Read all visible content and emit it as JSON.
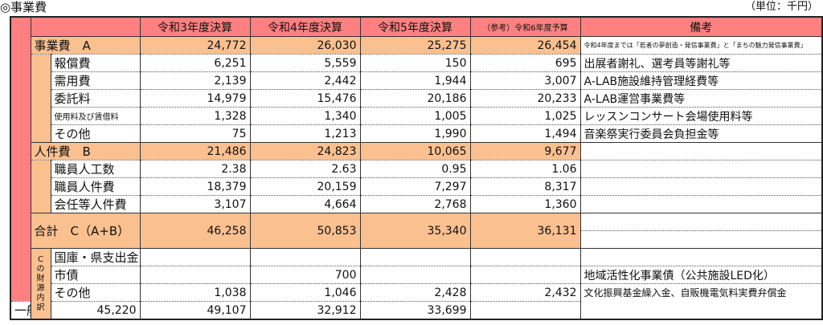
{
  "title": "◎事業費",
  "unit": "（単位：千円）",
  "colors": {
    "header": "#ff8080",
    "highlight": "#fac090"
  },
  "header": {
    "cols": [
      "令和3年度決算",
      "令和4年度決算",
      "令和5年度決算",
      "（参考）令和6年度予算"
    ],
    "remarks": "備考"
  },
  "rows": {
    "a": {
      "label": "事業費　A",
      "values": [
        "24,772",
        "26,030",
        "25,275",
        "26,454"
      ],
      "remark": "令和4年度までは「若者の夢創造・発信事業費」と「まちの魅力発信事業費」"
    },
    "a_items": [
      {
        "label": "報償費",
        "values": [
          "6,251",
          "5,559",
          "150",
          "695"
        ],
        "remark": "出展者謝礼、選考員等謝礼等"
      },
      {
        "label": "需用費",
        "values": [
          "2,139",
          "2,442",
          "1,944",
          "3,007"
        ],
        "remark": "A-LAB施設維持管理経費等"
      },
      {
        "label": "委託料",
        "values": [
          "14,979",
          "15,476",
          "20,186",
          "20,233"
        ],
        "remark": "A-LAB運営事業費等"
      },
      {
        "label": "使用料及び賃借料",
        "values": [
          "1,328",
          "1,340",
          "1,005",
          "1,025"
        ],
        "remark": "レッスンコンサート会場使用料等"
      },
      {
        "label": "その他",
        "values": [
          "75",
          "1,213",
          "1,990",
          "1,494"
        ],
        "remark": "音楽祭実行委員会負担金等"
      }
    ],
    "b": {
      "label": "人件費　B",
      "values": [
        "21,486",
        "24,823",
        "10,065",
        "9,677"
      ],
      "remark": ""
    },
    "b_items": [
      {
        "label": "職員人工数",
        "values": [
          "2.38",
          "2.63",
          "0.95",
          "1.06"
        ],
        "remark": ""
      },
      {
        "label": "職員人件費",
        "values": [
          "18,379",
          "20,159",
          "7,297",
          "8,317"
        ],
        "remark": ""
      },
      {
        "label": "会任等人件費",
        "values": [
          "3,107",
          "4,664",
          "2,768",
          "1,360"
        ],
        "remark": ""
      }
    ],
    "total": {
      "label": "合計　C（A+B）",
      "values": [
        "46,258",
        "50,853",
        "35,340",
        "36,131"
      ]
    },
    "funding_label": "Cの財源内訳",
    "funding": [
      {
        "label": "国庫・県支出金",
        "values": [
          "",
          "",
          "",
          ""
        ],
        "remark": ""
      },
      {
        "label": "市債",
        "values": [
          "",
          "700",
          "",
          ""
        ],
        "remark": "地域活性化事業債（公共施設LED化）"
      },
      {
        "label": "その他",
        "values": [
          "1,038",
          "1,046",
          "2,428",
          "2,432"
        ],
        "remark": "文化振興基金繰入金、自販機電気料実費弁償金"
      },
      {
        "label": "一般財源",
        "values": [
          "45,220",
          "49,107",
          "32,912",
          "33,699"
        ],
        "remark": ""
      }
    ]
  }
}
